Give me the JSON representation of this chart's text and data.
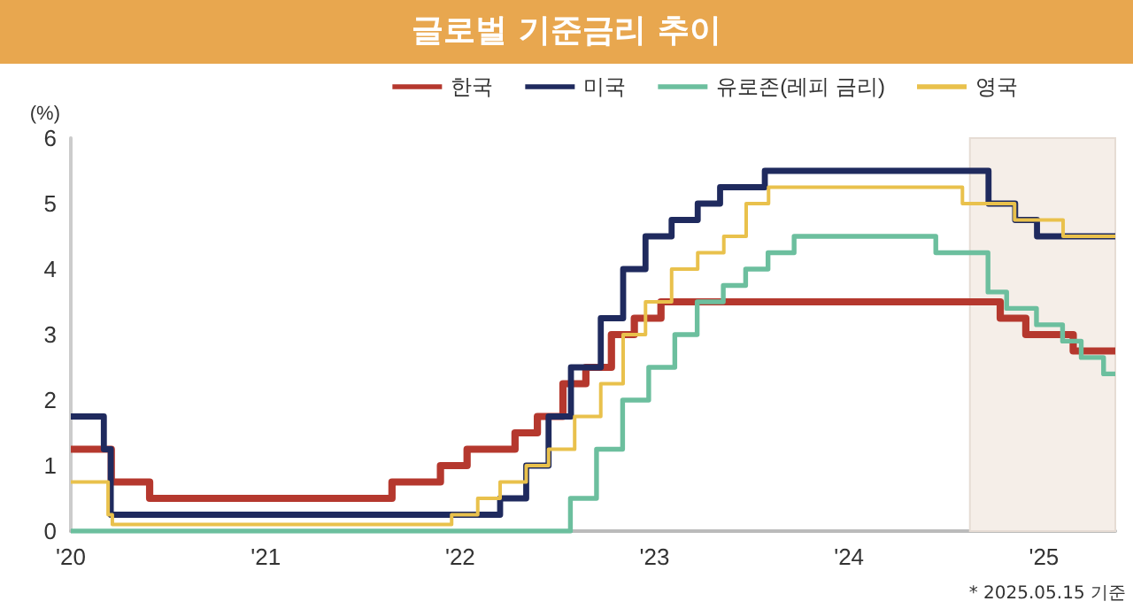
{
  "chart_data": {
    "type": "step",
    "title": "글로벌 기준금리 추이",
    "ylabel": "(%)",
    "annotations": [
      "* 2025.05.15 기준"
    ],
    "xlim": [
      "2020-01-01",
      "2025-05-15"
    ],
    "xticks": [
      {
        "value": "2020-01-01",
        "label": "'20"
      },
      {
        "value": "2021-01-01",
        "label": "'21"
      },
      {
        "value": "2022-01-01",
        "label": "'22"
      },
      {
        "value": "2023-01-01",
        "label": "'23"
      },
      {
        "value": "2024-01-01",
        "label": "'24"
      },
      {
        "value": "2025-01-01",
        "label": "'25"
      }
    ],
    "ylim": [
      0,
      6
    ],
    "yticks": [
      0,
      1,
      2,
      3,
      4,
      5,
      6
    ],
    "grid": false,
    "legend": "top right",
    "marker": "none",
    "line_style": "solid",
    "bands": [
      {
        "axis": "x",
        "from": "2024-08-15",
        "to": "2025-05-15",
        "color": "#f5eee8"
      }
    ],
    "series": [
      {
        "name": "한국",
        "color": "#b5382e",
        "x": [
          "2020-01-01",
          "2020-03-17",
          "2020-05-28",
          "2021-08-26",
          "2021-11-25",
          "2022-01-14",
          "2022-04-14",
          "2022-05-26",
          "2022-07-13",
          "2022-08-25",
          "2022-10-12",
          "2022-11-24",
          "2023-01-13",
          "2024-10-11",
          "2024-11-28",
          "2025-02-25",
          "2025-05-15"
        ],
        "values": [
          1.25,
          0.75,
          0.5,
          0.75,
          1.0,
          1.25,
          1.5,
          1.75,
          2.25,
          2.5,
          3.0,
          3.25,
          3.5,
          3.25,
          3.0,
          2.75,
          2.75
        ]
      },
      {
        "name": "미국",
        "color": "#1f2a5e",
        "x": [
          "2020-01-01",
          "2020-03-03",
          "2020-03-16",
          "2022-03-17",
          "2022-05-05",
          "2022-06-16",
          "2022-07-28",
          "2022-09-22",
          "2022-11-03",
          "2022-12-15",
          "2023-02-02",
          "2023-03-23",
          "2023-05-04",
          "2023-07-27",
          "2024-09-19",
          "2024-11-08",
          "2024-12-19",
          "2025-05-15"
        ],
        "values": [
          1.75,
          1.25,
          0.25,
          0.5,
          1.0,
          1.75,
          2.5,
          3.25,
          4.0,
          4.5,
          4.75,
          5.0,
          5.25,
          5.5,
          5.0,
          4.75,
          4.5,
          4.5
        ]
      },
      {
        "name": "유로존(레피 금리)",
        "color": "#6cbf9e",
        "x": [
          "2020-01-01",
          "2022-07-27",
          "2022-09-14",
          "2022-11-02",
          "2022-12-21",
          "2023-02-08",
          "2023-03-22",
          "2023-05-10",
          "2023-06-21",
          "2023-08-02",
          "2023-09-20",
          "2024-06-12",
          "2024-09-18",
          "2024-10-23",
          "2024-12-18",
          "2025-02-05",
          "2025-03-12",
          "2025-04-23",
          "2025-05-15"
        ],
        "values": [
          0,
          0.5,
          1.25,
          2.0,
          2.5,
          3.0,
          3.5,
          3.75,
          4.0,
          4.25,
          4.5,
          4.25,
          3.65,
          3.4,
          3.15,
          2.9,
          2.65,
          2.4,
          2.4
        ]
      },
      {
        "name": "영국",
        "color": "#e9c14c",
        "x": [
          "2020-01-01",
          "2020-03-11",
          "2020-03-19",
          "2021-12-16",
          "2022-02-03",
          "2022-03-17",
          "2022-05-05",
          "2022-06-16",
          "2022-08-04",
          "2022-09-22",
          "2022-11-03",
          "2022-12-15",
          "2023-02-02",
          "2023-03-23",
          "2023-05-11",
          "2023-06-22",
          "2023-08-03",
          "2024-08-01",
          "2024-11-07",
          "2025-02-06",
          "2025-05-15"
        ],
        "values": [
          0.75,
          0.25,
          0.1,
          0.25,
          0.5,
          0.75,
          1.0,
          1.25,
          1.75,
          2.25,
          3.0,
          3.5,
          4.0,
          4.25,
          4.5,
          5.0,
          5.25,
          5.0,
          4.75,
          4.5,
          4.5
        ]
      }
    ]
  }
}
